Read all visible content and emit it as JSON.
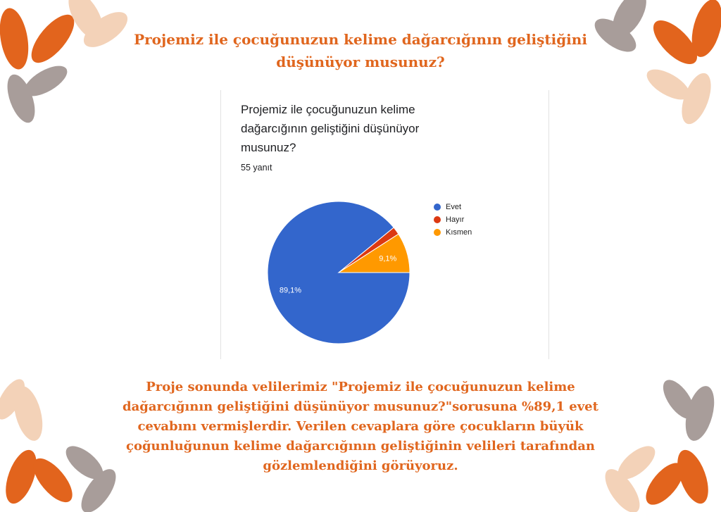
{
  "heading": "Projemiz ile çocuğunuzun kelime dağarcığının geliştiğini düşünüyor musunuz?",
  "chart_data": {
    "type": "pie",
    "title": "Projemiz ile çocuğunuzun kelime dağarcığının geliştiğini düşünüyor musunuz?",
    "subtitle": "55 yanıt",
    "slices": [
      {
        "label": "Evet",
        "value": 89.1,
        "color": "#3366cc",
        "data_label": "89,1%"
      },
      {
        "label": "Hayır",
        "value": 1.8,
        "color": "#dc3912",
        "data_label": ""
      },
      {
        "label": "Kısmen",
        "value": 9.1,
        "color": "#ff9900",
        "data_label": "9,1%"
      }
    ],
    "legend_position": "right"
  },
  "paragraph": "Proje sonunda velilerimiz \"Projemiz ile çocuğunuzun kelime dağarcığının geliştiğini düşünüyor musunuz?\"sorusuna %89,1 evet cevabını vermişlerdir. Verilen cevaplara göre çocukların büyük çoğunluğunun kelime dağarcığının geliştiğinin velileri tarafından gözlemlendiğini görüyoruz.",
  "colors": {
    "accent_orange": "#e0661e",
    "leaf_orange": "#e2641d",
    "leaf_peach": "#f3d2b8",
    "leaf_gray": "#a89d9a"
  }
}
